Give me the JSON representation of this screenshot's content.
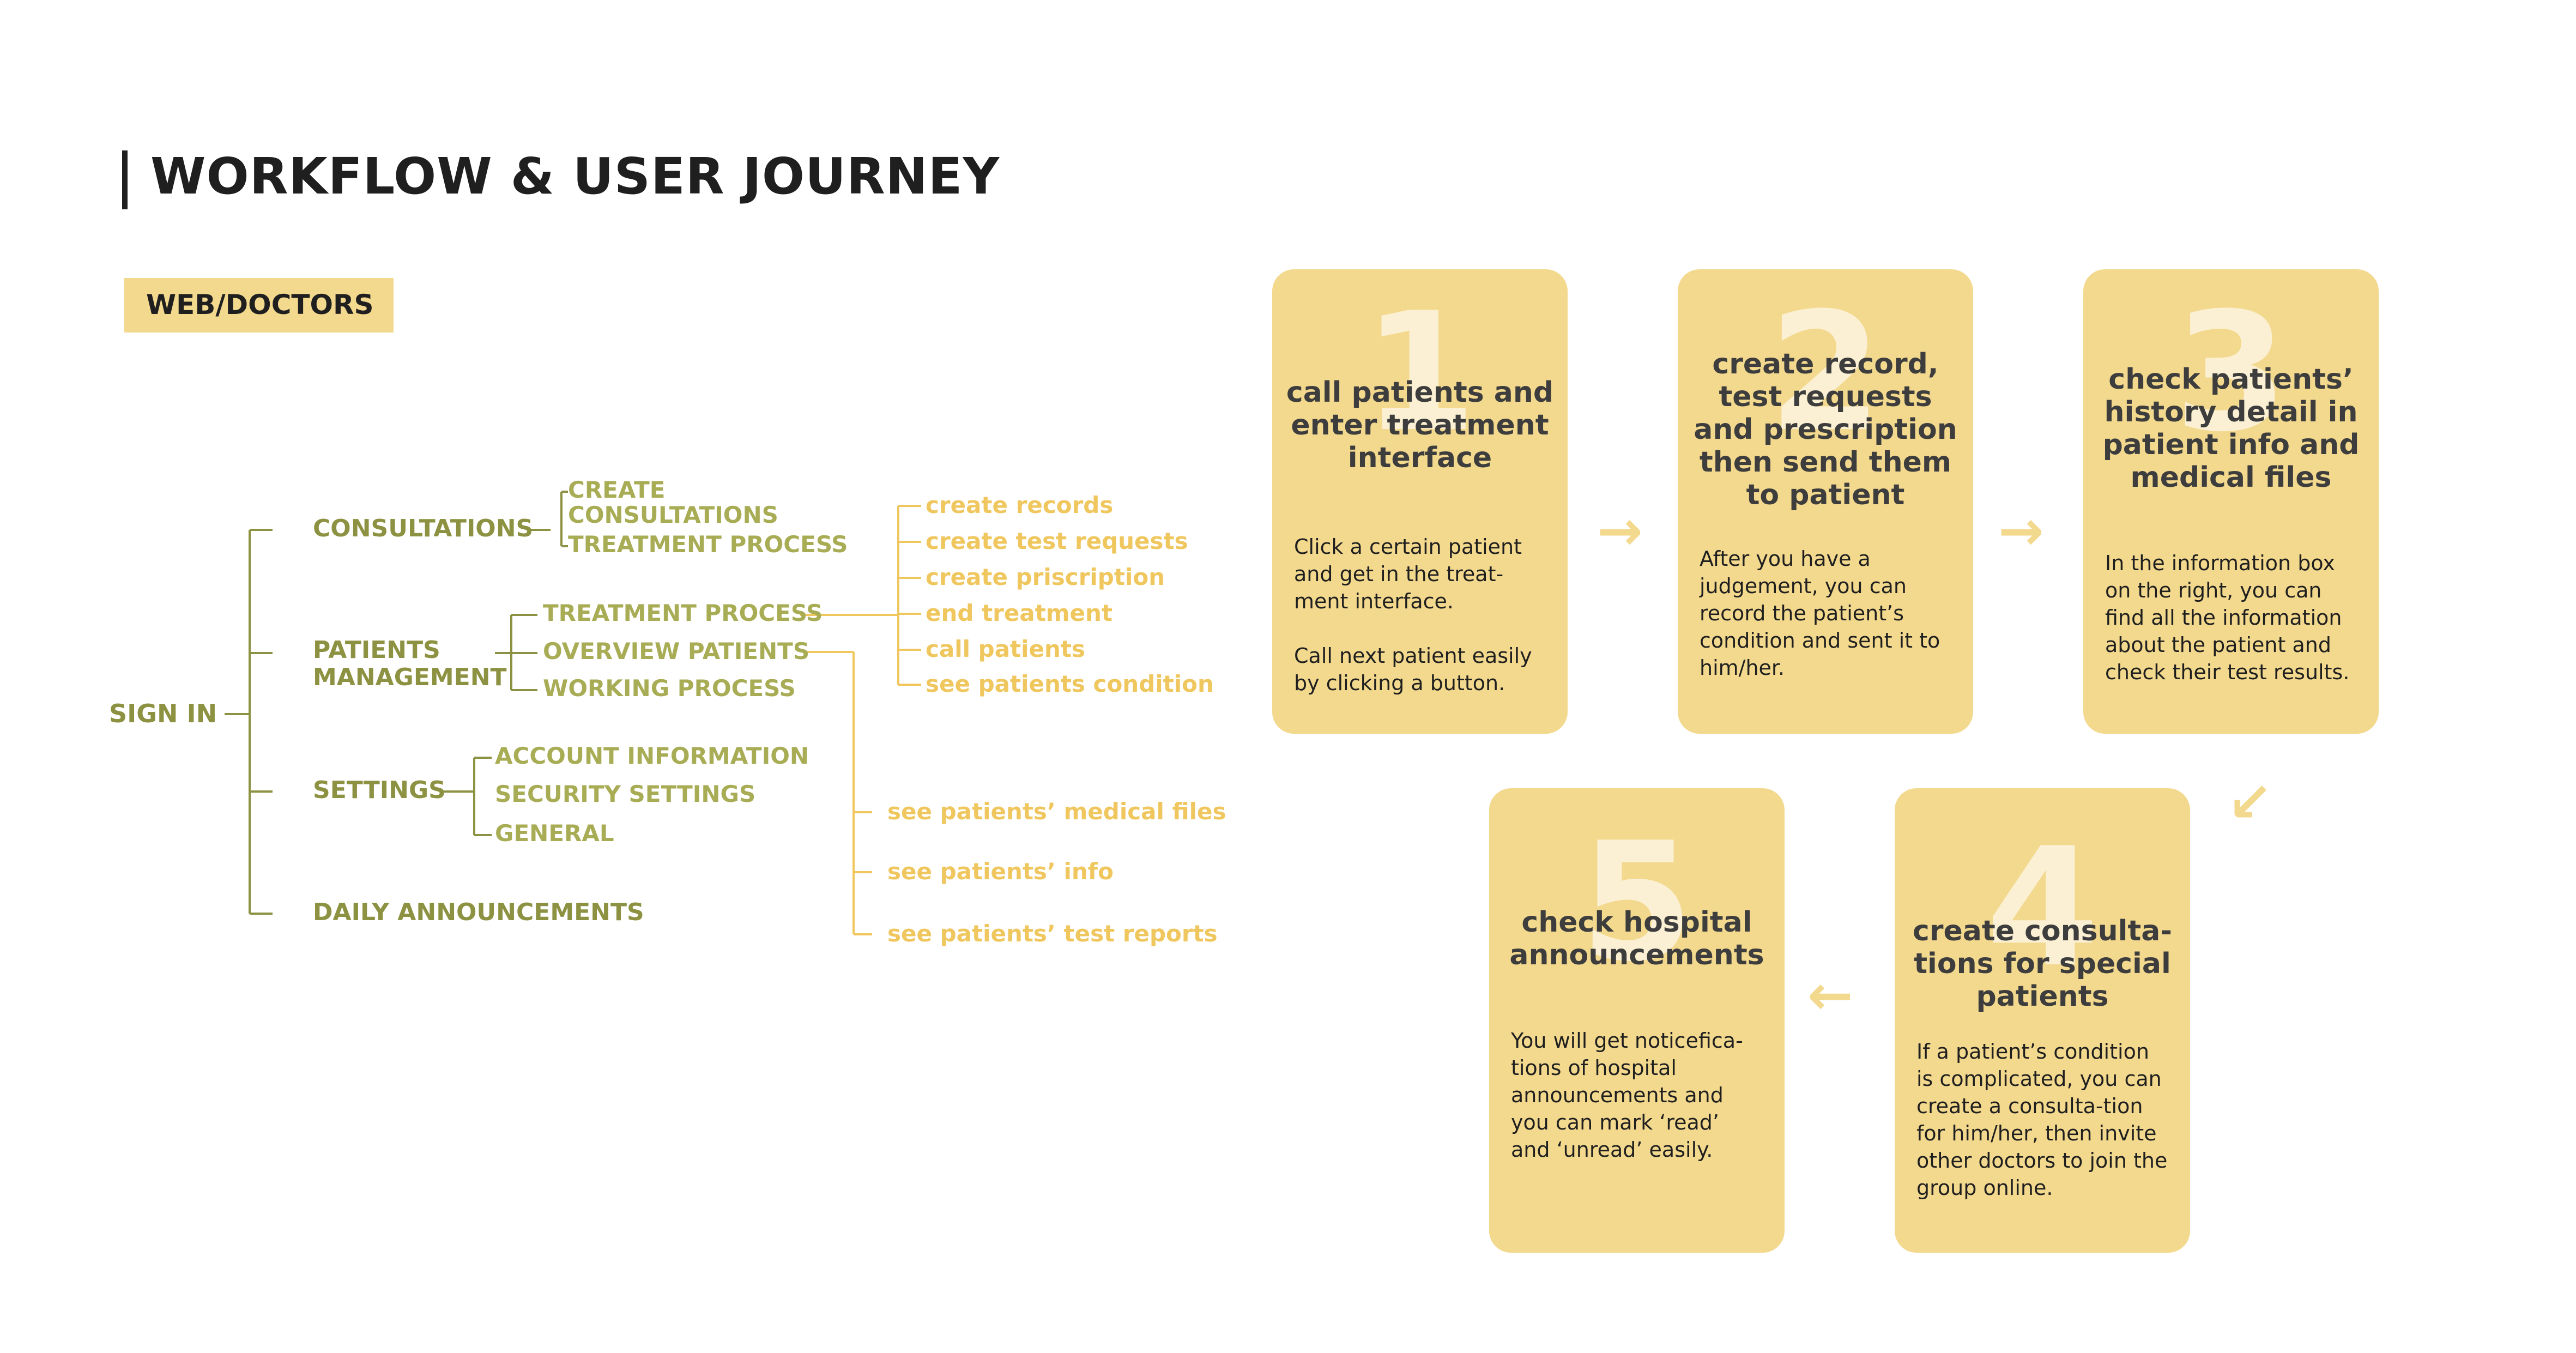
{
  "title": "WORKFLOW & USER JOURNEY",
  "section_tag": "WEB/DOCTORS",
  "colors": {
    "node": "#8c9241",
    "leaf": "#efc75e",
    "card": "#f3d98e",
    "card_number": "#fbf0d3",
    "title": "#1f1f1f"
  },
  "tree": {
    "root": "SIGN IN",
    "level1": [
      "CONSULTATIONS",
      "PATIENTS\nMANAGEMENT",
      "SETTINGS",
      "DAILY ANNOUNCEMENTS"
    ],
    "consultations_children": [
      "CREATE",
      "CONSULTATIONS",
      "TREATMENT PROCESS"
    ],
    "patients_children": [
      "TREATMENT PROCESS",
      "OVERVIEW PATIENTS",
      "WORKING PROCESS"
    ],
    "settings_children": [
      "ACCOUNT INFORMATION",
      "SECURITY SETTINGS",
      "GENERAL"
    ],
    "treatment_actions": [
      "create records",
      "create test requests",
      "create priscription",
      "end treatment",
      "call patients",
      "see patients condition"
    ],
    "overview_actions": [
      "see patients’ medical files",
      "see patients’ info",
      "see patients’ test reports"
    ]
  },
  "steps": [
    {
      "number": "1",
      "heading": "call patients and enter treatment interface",
      "body": "Click a certain patient and get in the treat-\nment interface.\n\nCall next patient easily by clicking a button."
    },
    {
      "number": "2",
      "heading": "create record, test requests and prescription then send them to patient",
      "body": "After you have a judgement, you can record the patient’s condition and sent it to him/her."
    },
    {
      "number": "3",
      "heading": "check patients’ history detail in patient info and medical files",
      "body": "In the information box on the right, you can find all the information about the patient and check their test results."
    },
    {
      "number": "4",
      "heading": "create consulta-tions for special patients",
      "body": "If a patient’s condition is complicated, you can create a consulta-tion for him/her, then invite other doctors to join the group online."
    },
    {
      "number": "5",
      "heading": "check hospital announcements",
      "body": "You will get noticefica-tions of hospital announcements and you can mark ‘read’ and ‘unread’ easily."
    }
  ]
}
